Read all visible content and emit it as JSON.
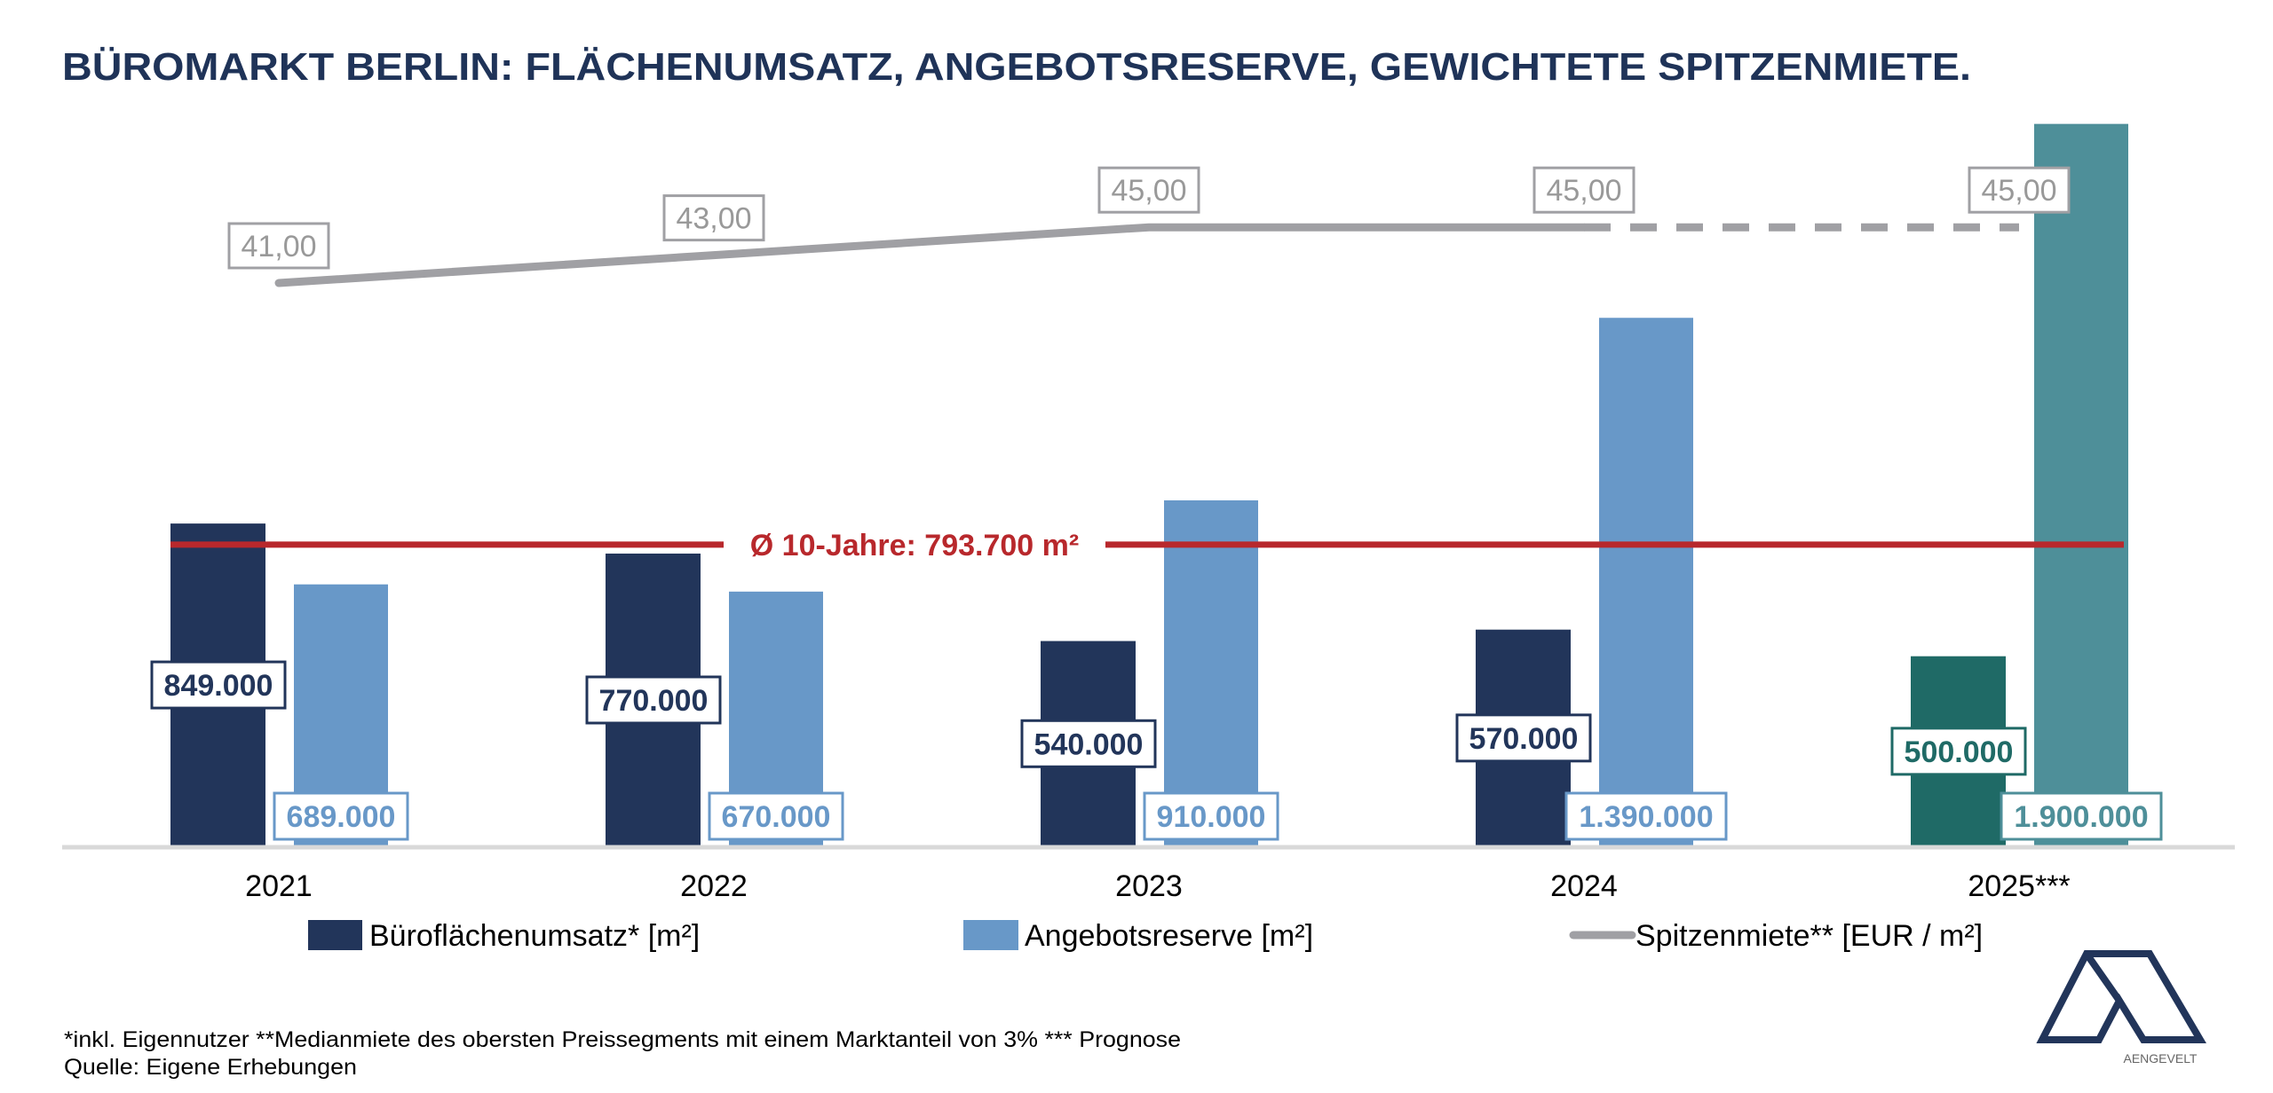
{
  "title": "BÜROMARKT BERLIN: FLÄCHENUMSATZ, ANGEBOTSRESERVE, GEWICHTETE SPITZENMIETE.",
  "chart_data": {
    "type": "bar",
    "title": "BÜROMARKT BERLIN: FLÄCHENUMSATZ, ANGEBOTSRESERVE, GEWICHTETE SPITZENMIETE.",
    "categories": [
      "2021",
      "2022",
      "2023",
      "2024",
      "2025***"
    ],
    "series": [
      {
        "name": "Büroflächenumsatz* [m²]",
        "type": "bar",
        "values": [
          849000,
          770000,
          540000,
          570000,
          500000
        ],
        "labels": [
          "849.000",
          "770.000",
          "540.000",
          "570.000",
          "500.000"
        ]
      },
      {
        "name": "Angebotsreserve [m²]",
        "type": "bar",
        "values": [
          689000,
          670000,
          910000,
          1390000,
          1900000
        ],
        "labels": [
          "689.000",
          "670.000",
          "910.000",
          "1.390.000",
          "1.900.000"
        ]
      },
      {
        "name": "Spitzenmiete** [EUR / m²]",
        "type": "line",
        "values": [
          41,
          43,
          45,
          45,
          45
        ],
        "labels": [
          "41,00",
          "43,00",
          "45,00",
          "45,00",
          "45,00"
        ]
      }
    ],
    "reference_line": {
      "label": "Ø 10-Jahre: 793.700 m²",
      "value": 793700
    },
    "forecast_category": "2025***",
    "legend": [
      "Büroflächenumsatz* [m²]",
      "Angebotsreserve [m²]",
      "Spitzenmiete** [EUR / m²]"
    ],
    "legend_position": "bottom",
    "grid": false,
    "colors": {
      "umsatz": "#22355a",
      "reserve": "#6898c8",
      "umsatz_forecast": "#1f6a66",
      "reserve_forecast": "#4e8f99",
      "rent": "#a0a0a4",
      "average": "#b8282c",
      "title": "#1f3358"
    }
  },
  "footnotes": [
    "*inkl. Eigennutzer **Medianmiete des obersten Preissegments mit einem Marktanteil von 3% *** Prognose",
    "Quelle: Eigene Erhebungen"
  ],
  "logo": {
    "text": "AENGEVELT"
  }
}
